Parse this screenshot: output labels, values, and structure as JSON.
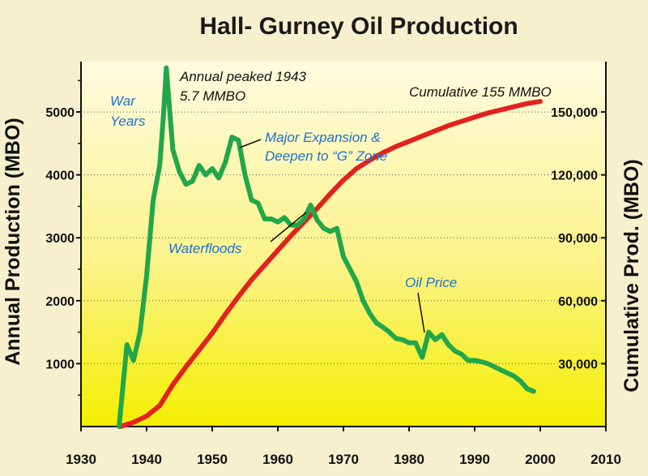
{
  "chart_data": {
    "type": "line",
    "title": "Hall- Gurney Oil Production",
    "ylabel": "Annual Production (MBO)",
    "y2label": "Cumulative Prod. (MBO)",
    "xlim": [
      1930,
      2010
    ],
    "ylim": [
      0,
      5800
    ],
    "y2lim": [
      0,
      174000
    ],
    "x_ticks": [
      "1930",
      "1940",
      "1950",
      "1960",
      "1970",
      "1980",
      "1990",
      "2000",
      "2010"
    ],
    "y_ticks": [
      {
        "value": 1000,
        "label": "1000"
      },
      {
        "value": 2000,
        "label": "2000"
      },
      {
        "value": 3000,
        "label": "3000"
      },
      {
        "value": 4000,
        "label": "4000"
      },
      {
        "value": 5000,
        "label": "5000"
      }
    ],
    "y2_ticks": [
      {
        "value": 30000,
        "label": "30,000"
      },
      {
        "value": 60000,
        "label": "60,000"
      },
      {
        "value": 90000,
        "label": "90,000"
      },
      {
        "value": 120000,
        "label": "120,000"
      },
      {
        "value": 150000,
        "label": "150,000"
      }
    ],
    "grid": "horizontal",
    "colors": {
      "annual": "#22a64a",
      "cumulative": "#e3221d",
      "annotation_blue": "#1f6fd1",
      "background_top": "#fffbe0",
      "background_bottom": "#f4ef00"
    },
    "series": [
      {
        "axis": "left",
        "color": "#22a64a",
        "x": [
          1935.8,
          1937.0,
          1938.0,
          1939.0,
          1940.0,
          1941.0,
          1942.0,
          1942.6,
          1943.0,
          1944.0,
          1945.0,
          1946.0,
          1947.0,
          1948.0,
          1949.0,
          1950.0,
          1951.0,
          1952.0,
          1953.0,
          1954.0,
          1955.0,
          1956.0,
          1957.0,
          1958.0,
          1959.0,
          1960.0,
          1961.0,
          1962.0,
          1963.0,
          1964.0,
          1965.0,
          1966.0,
          1967.0,
          1968.0,
          1969.0,
          1970.0,
          1971.0,
          1972.0,
          1973.0,
          1974.0,
          1975.0,
          1976.0,
          1977.0,
          1978.0,
          1979.0,
          1980.0,
          1981.0,
          1982.0,
          1983.0,
          1984.0,
          1985.0,
          1986.0,
          1987.0,
          1988.0,
          1989.0,
          1990.0,
          1991.0,
          1992.0,
          1993.0,
          1994.0,
          1995.0,
          1996.0,
          1997.0,
          1998.0,
          1999.0
        ],
        "values": [
          0,
          1300,
          1050,
          1500,
          2400,
          3600,
          4150,
          5000,
          5700,
          4400,
          4050,
          3850,
          3900,
          4150,
          4000,
          4100,
          3950,
          4200,
          4600,
          4550,
          4000,
          3600,
          3550,
          3300,
          3300,
          3250,
          3320,
          3200,
          3200,
          3300,
          3520,
          3280,
          3150,
          3100,
          3150,
          2700,
          2500,
          2300,
          2000,
          1800,
          1650,
          1580,
          1500,
          1400,
          1380,
          1330,
          1330,
          1100,
          1500,
          1380,
          1460,
          1300,
          1200,
          1150,
          1050,
          1050,
          1030,
          1000,
          950,
          900,
          850,
          800,
          720,
          600,
          560
        ]
      },
      {
        "axis": "right",
        "color": "#e3221d",
        "x": [
          1936,
          1938,
          1940,
          1942,
          1944,
          1946,
          1948,
          1950,
          1952,
          1954,
          1956,
          1958,
          1960,
          1962,
          1964,
          1966,
          1968,
          1970,
          1972,
          1974,
          1976,
          1978,
          1980,
          1982,
          1984,
          1986,
          1988,
          1990,
          1992,
          1994,
          1996,
          1998,
          2000
        ],
        "values": [
          0,
          2000,
          5000,
          10000,
          20000,
          28500,
          36500,
          44500,
          53500,
          62000,
          70000,
          77000,
          84000,
          91000,
          97500,
          104000,
          111000,
          117500,
          123000,
          127000,
          130500,
          133500,
          136000,
          138500,
          141000,
          143500,
          145500,
          147500,
          149500,
          151000,
          152500,
          154000,
          155000
        ]
      }
    ],
    "annotations": {
      "war_years_line1": "War",
      "war_years_line2": "Years",
      "peak_line1": "Annual peaked 1943",
      "peak_line2": "5.7 MMBO",
      "cumulative": "Cumulative 155 MMBO",
      "expansion_line1": "Major Expansion &",
      "expansion_line2": "Deepen to “G” Zone",
      "waterfloods": "Waterfloods",
      "oil_price": "Oil Price"
    }
  }
}
